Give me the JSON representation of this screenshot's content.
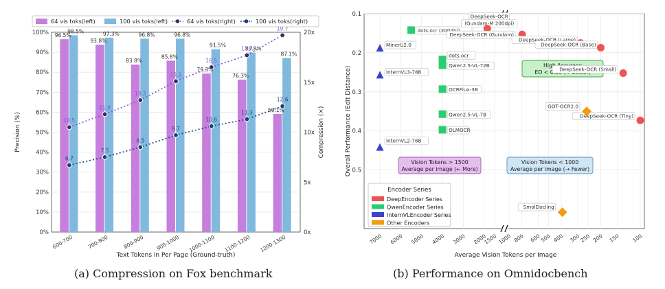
{
  "chart_data": [
    {
      "type": "bar",
      "caption": "(a) Compression on Fox benchmark",
      "xlabel": "Text Tokens in Per Page (Ground-truth)",
      "ylabel": "Precision (%)",
      "y2label": "Compression (×)",
      "ylim": [
        0,
        100
      ],
      "y2lim": [
        0,
        20
      ],
      "categories": [
        "600-700",
        "700-800",
        "800-900",
        "900-1000",
        "1000-1100",
        "1100-1200",
        "1200-1300"
      ],
      "ytick_labels": [
        "0%",
        "10%",
        "20%",
        "30%",
        "40%",
        "50%",
        "60%",
        "70%",
        "80%",
        "90%",
        "100%"
      ],
      "y2tick_labels": [
        "0x",
        "5x",
        "10x",
        "15x",
        "20x"
      ],
      "legend": {
        "items": [
          "64 vis toks(left)",
          "100 vis toks(left)",
          "64 vis toks(right)",
          "100 vis toks(right)"
        ],
        "position": "top"
      },
      "series": [
        {
          "name": "64 vis toks(left)",
          "kind": "bar",
          "axis": "left",
          "color": "#c67fdc",
          "values": [
            96.5,
            93.8,
            83.8,
            85.8,
            79.3,
            76.3,
            59.1
          ],
          "labels": [
            "96.5%",
            "93.8%",
            "83.8%",
            "85.8%",
            "79.3%",
            "76.3%",
            "59.1%"
          ]
        },
        {
          "name": "100 vis toks(left)",
          "kind": "bar",
          "axis": "left",
          "color": "#80b9dd",
          "values": [
            98.5,
            97.3,
            96.8,
            96.8,
            91.5,
            89.8,
            87.1
          ],
          "labels": [
            "98.5%",
            "97.3%",
            "96.8%",
            "96.8%",
            "91.5%",
            "89.8%",
            "87.1%"
          ]
        },
        {
          "name": "64 vis toks(right)",
          "kind": "line",
          "axis": "right",
          "color": "#7b5ad6",
          "marker": "#3d2a64",
          "values": [
            10.5,
            11.8,
            13.2,
            15.1,
            16.5,
            17.7,
            19.7
          ],
          "labels": [
            "10.5",
            "11.8",
            "13.2",
            "15.1",
            "16.5",
            "17.7",
            "19.7"
          ]
        },
        {
          "name": "100 vis toks(right)",
          "kind": "line",
          "axis": "right",
          "color": "#1d4a82",
          "marker": "#1b3f6e",
          "values": [
            6.7,
            7.5,
            8.5,
            9.7,
            10.6,
            11.3,
            12.6
          ],
          "labels": [
            "6.7",
            "7.5",
            "8.5",
            "9.7",
            "10.6",
            "11.3",
            "12.6"
          ]
        }
      ],
      "grid": true
    },
    {
      "type": "scatter",
      "caption": "(b) Performance on Omnidocbench",
      "xlabel": "Average Vision Tokens per Image",
      "ylabel": "Overall Performance (Edit Distance)",
      "y_inverted": true,
      "broken_x_axis": true,
      "ylim": [
        0.1,
        0.65
      ],
      "ytick_labels": [
        "0.1",
        "0.2",
        "0.3",
        "0.4",
        "0.5"
      ],
      "xtick_labels_left": [
        "7000",
        "6000",
        "5000",
        "4000",
        "3000",
        "2000",
        "1500"
      ],
      "xtick_labels_right": [
        "1000",
        "800",
        "600",
        "500",
        "400",
        "300",
        "250",
        "200",
        "150",
        "100"
      ],
      "x_right_is_reverse_log": true,
      "grid": true,
      "legend": {
        "title": "Encoder Series",
        "position": "lower-left",
        "items": [
          {
            "label": "DeepEncoder Series",
            "color": "#ef5350"
          },
          {
            "label": "QwenEncoder Series",
            "color": "#2ecc71"
          },
          {
            "label": "InternVLEncoder Series",
            "color": "#3f3fd4"
          },
          {
            "label": "Other Encoders",
            "color": "#f39c12"
          }
        ]
      },
      "annotations": [
        {
          "text_line1": "High Accuracy",
          "text_line2": "ED < 0.25 (↑ better)",
          "fill": "#c9f0c9",
          "stroke": "#3aa83a"
        },
        {
          "text_line1": "Vision Tokens > 1500",
          "text_line2": "Average per image (← More)",
          "fill": "#e7bdf0",
          "stroke": "#a05ab5"
        },
        {
          "text_line1": "Vision Tokens < 1000",
          "text_line2": "Average per image (→ Fewer)",
          "fill": "#cfe6f5",
          "stroke": "#5a93bb"
        }
      ],
      "points": [
        {
          "label": "dots.ocr (200dpi)",
          "series": "QwenEncoder Series",
          "shape": "square",
          "x": 5500,
          "y": 0.142
        },
        {
          "label": "dots.ocr",
          "series": "QwenEncoder Series",
          "shape": "square",
          "x": 4000,
          "y": 0.217
        },
        {
          "label": "Qwen2.5-VL-72B",
          "series": "QwenEncoder Series",
          "shape": "square",
          "x": 4000,
          "y": 0.232
        },
        {
          "label": "OCRFlux-3B",
          "series": "QwenEncoder Series",
          "shape": "square",
          "x": 4000,
          "y": 0.293
        },
        {
          "label": "Qwen2.5-VL-7B",
          "series": "QwenEncoder Series",
          "shape": "square",
          "x": 4000,
          "y": 0.357
        },
        {
          "label": "OLMOCR",
          "series": "QwenEncoder Series",
          "shape": "square",
          "x": 4000,
          "y": 0.397
        },
        {
          "label": "MinerU2.0",
          "series": "InternVLEncoder Series",
          "shape": "triangle",
          "x": 7000,
          "y": 0.188
        },
        {
          "label": "InternVL3-78B",
          "series": "InternVLEncoder Series",
          "shape": "triangle",
          "x": 7000,
          "y": 0.257
        },
        {
          "label": "InternVL2-76B",
          "series": "InternVLEncoder Series",
          "shape": "triangle",
          "x": 7000,
          "y": 0.442
        },
        {
          "label": "DeepSeek-OCR (Gundam-M 200dpi)",
          "series": "DeepEncoder Series",
          "shape": "circle",
          "x": 1853,
          "y": 0.138
        },
        {
          "label": "DeepSeek-OCR (Gundam)",
          "series": "DeepEncoder Series",
          "shape": "circle",
          "x": 795,
          "y": 0.153
        },
        {
          "label": "DeepSeek-OCR (Large)",
          "series": "DeepEncoder Series",
          "shape": "circle",
          "x": 285,
          "y": 0.175
        },
        {
          "label": "DeepSeek-OCR (Base)",
          "series": "DeepEncoder Series",
          "shape": "circle",
          "x": 200,
          "y": 0.187
        },
        {
          "label": "DeepSeek-OCR (Small)",
          "series": "DeepEncoder Series",
          "shape": "circle",
          "x": 135,
          "y": 0.252
        },
        {
          "label": "DeepSeek-OCR (Tiny)",
          "series": "DeepEncoder Series",
          "shape": "circle",
          "x": 100,
          "y": 0.373
        },
        {
          "label": "GOT-OCR2.0",
          "series": "Other Encoders",
          "shape": "diamond",
          "x": 256,
          "y": 0.35
        },
        {
          "label": "SmolDocling",
          "series": "Other Encoders",
          "shape": "diamond",
          "x": 392,
          "y": 0.608
        }
      ]
    }
  ]
}
